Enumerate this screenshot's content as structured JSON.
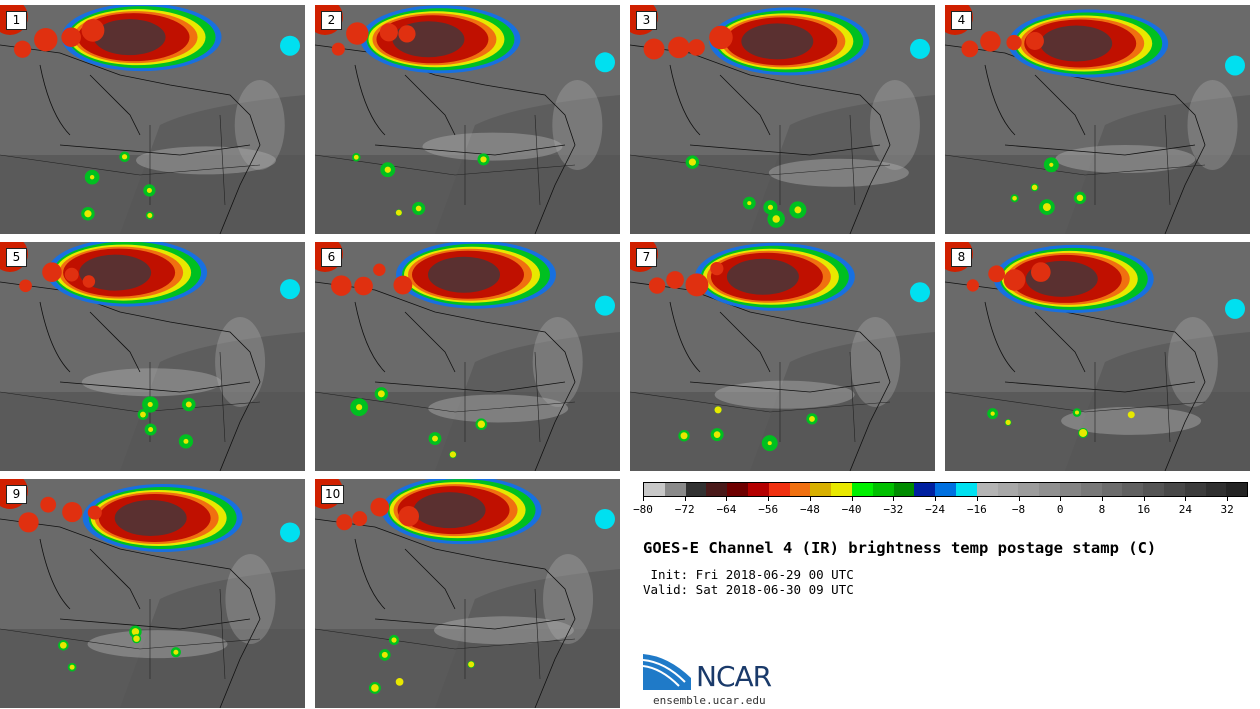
{
  "panels": [
    {
      "label": "1"
    },
    {
      "label": "2"
    },
    {
      "label": "3"
    },
    {
      "label": "4"
    },
    {
      "label": "5"
    },
    {
      "label": "6"
    },
    {
      "label": "7"
    },
    {
      "label": "8"
    },
    {
      "label": "9"
    },
    {
      "label": "10"
    }
  ],
  "colorbar": {
    "colors": [
      "#c8c8c8",
      "#8a8a8a",
      "#323232",
      "#4a1a1a",
      "#6e0000",
      "#b40000",
      "#f03010",
      "#f07010",
      "#d8b000",
      "#e8e800",
      "#00f000",
      "#00c000",
      "#008c00",
      "#0020a0",
      "#0070e0",
      "#00e0f0",
      "#b4b4b4",
      "#a8a8a8",
      "#9c9c9c",
      "#909090",
      "#848484",
      "#787878",
      "#6c6c6c",
      "#606060",
      "#545454",
      "#484848",
      "#3c3c3c",
      "#303030",
      "#242424"
    ],
    "ticks": [
      "−80",
      "−72",
      "−64",
      "−56",
      "−48",
      "−40",
      "−32",
      "−24",
      "−16",
      "−8",
      "0",
      "8",
      "16",
      "24",
      "32"
    ]
  },
  "title": "GOES-E Channel 4 (IR) brightness temp postage stamp (C)",
  "init": " Init: Fri 2018-06-29 00 UTC",
  "valid": "Valid: Sat 2018-06-30 09 UTC",
  "logo": {
    "text": "NCAR",
    "site": "ensemble.ucar.edu"
  }
}
